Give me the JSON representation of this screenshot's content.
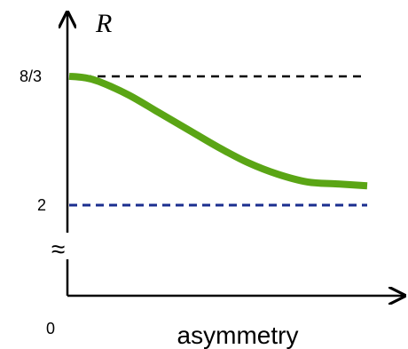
{
  "chart_data": {
    "type": "line",
    "title": "",
    "xlabel": "asymmetry",
    "ylabel": "R",
    "y_break_symbol": "≈",
    "y_ticks": [
      {
        "label": "8/3",
        "value": 2.6667
      },
      {
        "label": "2",
        "value": 2
      },
      {
        "label": "0",
        "value": 0
      }
    ],
    "reference_lines": [
      {
        "value": 2.6667,
        "color": "#000000",
        "style": "dashed"
      },
      {
        "value": 2,
        "color": "#1a2e8f",
        "style": "dashed"
      }
    ],
    "series": [
      {
        "color": "#5aa515",
        "x": [
          0.0,
          0.05,
          0.1,
          0.2,
          0.3,
          0.4,
          0.5,
          0.6,
          0.7,
          0.8,
          0.9,
          1.0
        ],
        "y": [
          2.667,
          2.66,
          2.64,
          2.57,
          2.48,
          2.39,
          2.3,
          2.22,
          2.16,
          2.12,
          2.11,
          2.1
        ]
      }
    ]
  }
}
